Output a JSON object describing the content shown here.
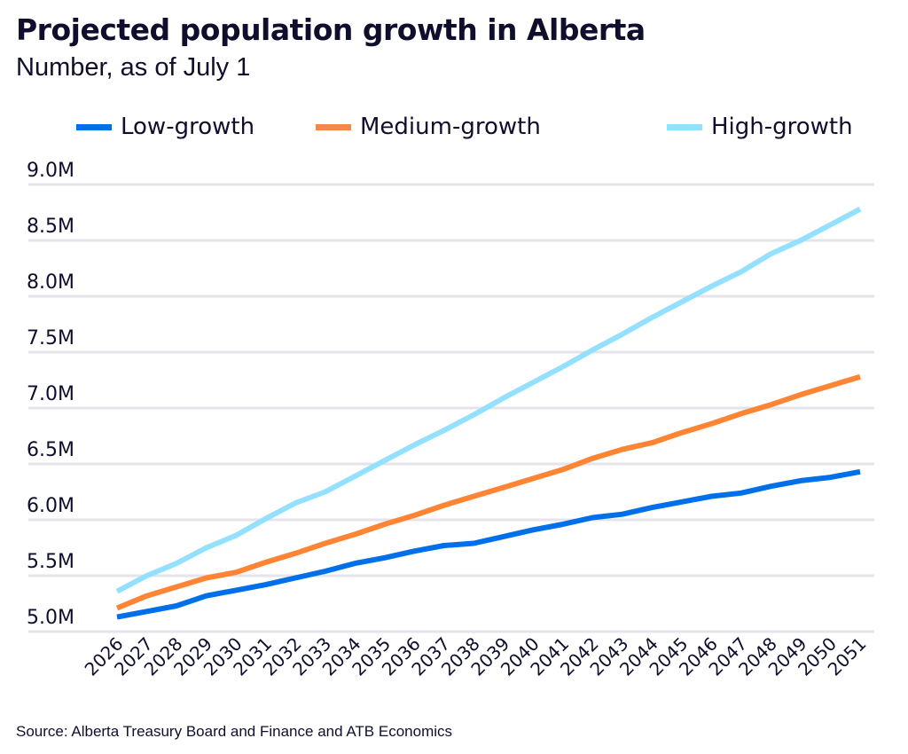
{
  "chart_data": {
    "type": "line",
    "title": "Projected population growth in Alberta",
    "subtitle": "Number, as of July 1",
    "source": "Source: Alberta Treasury Board and Finance and ATB Economics",
    "legend_position": "top",
    "grid": "horizontal",
    "ylim": [
      5.0,
      9.0
    ],
    "y_ticks": [
      5.0,
      5.5,
      6.0,
      6.5,
      7.0,
      7.5,
      8.0,
      8.5,
      9.0
    ],
    "y_tick_labels": [
      "5.0M",
      "5.5M",
      "6.0M",
      "6.5M",
      "7.0M",
      "7.5M",
      "8.0M",
      "8.5M",
      "9.0M"
    ],
    "x": [
      "2026",
      "2027",
      "2028",
      "2029",
      "2030",
      "2031",
      "2032",
      "2033",
      "2034",
      "2035",
      "2036",
      "2037",
      "2038",
      "2039",
      "2040",
      "2041",
      "2042",
      "2043",
      "2044",
      "2045",
      "2046",
      "2047",
      "2048",
      "2049",
      "2050",
      "2051"
    ],
    "series": [
      {
        "name": "Low-growth",
        "color": "#0070ea",
        "values": [
          5.13,
          5.18,
          5.23,
          5.32,
          5.37,
          5.42,
          5.48,
          5.54,
          5.61,
          5.66,
          5.72,
          5.77,
          5.79,
          5.85,
          5.91,
          5.96,
          6.02,
          6.05,
          6.11,
          6.16,
          6.21,
          6.24,
          6.3,
          6.35,
          6.38,
          6.43
        ]
      },
      {
        "name": "Medium-growth",
        "color": "#ff8534",
        "values": [
          5.21,
          5.32,
          5.4,
          5.48,
          5.53,
          5.62,
          5.7,
          5.79,
          5.87,
          5.96,
          6.04,
          6.13,
          6.21,
          6.29,
          6.37,
          6.45,
          6.55,
          6.63,
          6.69,
          6.78,
          6.86,
          6.95,
          7.03,
          7.12,
          7.2,
          7.28
        ]
      },
      {
        "name": "High-growth",
        "color": "#94e0ff",
        "values": [
          5.36,
          5.5,
          5.61,
          5.75,
          5.86,
          6.01,
          6.15,
          6.25,
          6.39,
          6.53,
          6.67,
          6.8,
          6.94,
          7.09,
          7.23,
          7.37,
          7.52,
          7.66,
          7.81,
          7.95,
          8.09,
          8.22,
          8.38,
          8.5,
          8.64,
          8.78
        ]
      }
    ]
  }
}
